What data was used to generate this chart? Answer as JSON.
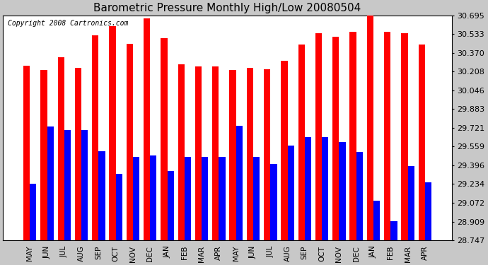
{
  "title": "Barometric Pressure Monthly High/Low 20080504",
  "copyright": "Copyright 2008 Cartronics.com",
  "categories": [
    "MAY",
    "JUN",
    "JUL",
    "AUG",
    "SEP",
    "OCT",
    "NOV",
    "DEC",
    "JAN",
    "FEB",
    "MAR",
    "APR",
    "MAY",
    "JUN",
    "JUL",
    "AUG",
    "SEP",
    "OCT",
    "NOV",
    "DEC",
    "JAN",
    "FEB",
    "MAR",
    "APR"
  ],
  "highs": [
    30.26,
    30.22,
    30.33,
    30.24,
    30.52,
    30.6,
    30.45,
    30.67,
    30.5,
    30.27,
    30.25,
    30.25,
    30.22,
    30.24,
    30.23,
    30.3,
    30.44,
    30.54,
    30.51,
    30.55,
    30.73,
    30.55,
    30.54,
    30.44
  ],
  "lows": [
    29.24,
    29.73,
    29.7,
    29.7,
    29.52,
    29.32,
    29.47,
    29.48,
    29.35,
    29.47,
    29.47,
    29.47,
    29.74,
    29.47,
    29.41,
    29.57,
    29.64,
    29.64,
    29.6,
    29.51,
    29.09,
    28.91,
    29.39,
    29.25
  ],
  "ymin": 28.747,
  "ymax": 30.695,
  "yticks": [
    28.747,
    28.909,
    29.072,
    29.234,
    29.396,
    29.559,
    29.721,
    29.883,
    30.046,
    30.208,
    30.37,
    30.533,
    30.695
  ],
  "bar_color_high": "#FF0000",
  "bar_color_low": "#0000FF",
  "background_color": "#C8C8C8",
  "plot_bg_color": "#FFFFFF",
  "title_fontsize": 11,
  "copyright_fontsize": 7
}
